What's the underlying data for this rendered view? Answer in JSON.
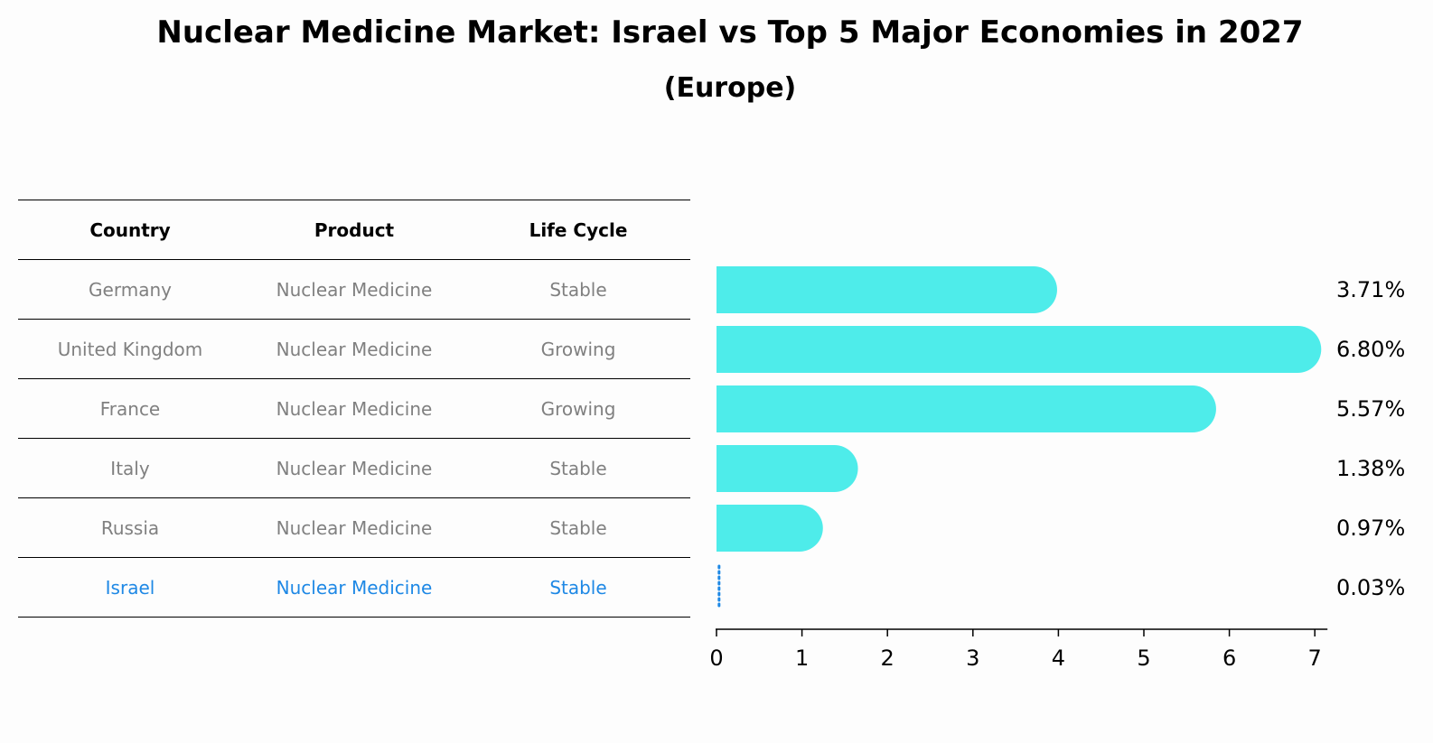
{
  "title": "Nuclear Medicine Market: Israel vs Top 5 Major Economies in 2027",
  "subtitle": "(Europe)",
  "table": {
    "headers": [
      "Country",
      "Product",
      "Life Cycle"
    ],
    "rows": [
      {
        "country": "Germany",
        "product": "Nuclear Medicine",
        "life_cycle": "Stable"
      },
      {
        "country": "United Kingdom",
        "product": "Nuclear Medicine",
        "life_cycle": "Growing"
      },
      {
        "country": "France",
        "product": "Nuclear Medicine",
        "life_cycle": "Growing"
      },
      {
        "country": "Italy",
        "product": "Nuclear Medicine",
        "life_cycle": "Stable"
      },
      {
        "country": "Russia",
        "product": "Nuclear Medicine",
        "life_cycle": "Stable"
      },
      {
        "country": "Israel",
        "product": "Nuclear Medicine",
        "life_cycle": "Stable"
      }
    ]
  },
  "colors": {
    "bar": "#4eecea",
    "highlight": "#1e88e5",
    "muted_text": "#808080"
  },
  "chart_data": {
    "type": "bar",
    "orientation": "horizontal",
    "categories": [
      "Germany",
      "United Kingdom",
      "France",
      "Italy",
      "Russia",
      "Israel"
    ],
    "values": [
      3.71,
      6.8,
      5.57,
      1.38,
      0.97,
      0.03
    ],
    "value_labels": [
      "3.71%",
      "6.80%",
      "5.57%",
      "1.38%",
      "0.97%",
      "0.03%"
    ],
    "highlight_category": "Israel",
    "xlim": [
      0,
      7
    ],
    "xticks": [
      0,
      1,
      2,
      3,
      4,
      5,
      6,
      7
    ],
    "grid": false
  }
}
